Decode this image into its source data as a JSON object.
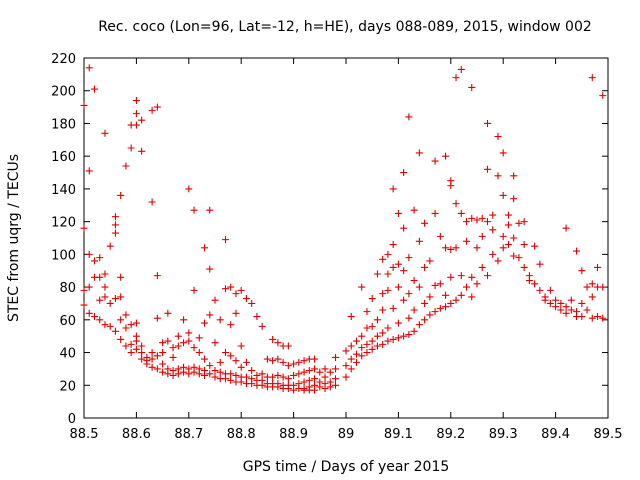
{
  "chart_data": {
    "type": "scatter",
    "title": "Rec. coco (Lon=96, Lat=-12, h=HE), days 088-089, 2015, window 002",
    "xlabel": "GPS time / Days of year 2015",
    "ylabel": "STEC from uqrg / TECUs",
    "xlim": [
      88.5,
      89.5
    ],
    "ylim": [
      0,
      220
    ],
    "xticks": [
      "88.5",
      "88.6",
      "88.7",
      "88.8",
      "88.9",
      "89",
      "89.1",
      "89.2",
      "89.3",
      "89.4",
      "89.5"
    ],
    "yticks": [
      "0",
      "20",
      "40",
      "60",
      "80",
      "100",
      "120",
      "140",
      "160",
      "180",
      "200",
      "220"
    ],
    "grid": false,
    "marker": "+",
    "color": "#e00000",
    "points": [
      [
        88.5,
        191
      ],
      [
        88.5,
        116
      ],
      [
        88.5,
        78
      ],
      [
        88.5,
        69
      ],
      [
        88.51,
        214
      ],
      [
        88.51,
        151
      ],
      [
        88.51,
        100
      ],
      [
        88.51,
        80
      ],
      [
        88.51,
        64
      ],
      [
        88.52,
        201
      ],
      [
        88.52,
        96
      ],
      [
        88.52,
        86
      ],
      [
        88.52,
        62
      ],
      [
        88.53,
        98
      ],
      [
        88.53,
        86
      ],
      [
        88.53,
        72
      ],
      [
        88.53,
        60
      ],
      [
        88.54,
        174
      ],
      [
        88.54,
        88
      ],
      [
        88.54,
        80
      ],
      [
        88.54,
        74
      ],
      [
        88.54,
        57
      ],
      [
        88.55,
        105
      ],
      [
        88.55,
        70
      ],
      [
        88.55,
        56
      ],
      [
        88.56,
        123
      ],
      [
        88.56,
        118
      ],
      [
        88.56,
        113
      ],
      [
        88.56,
        73
      ],
      [
        88.56,
        53
      ],
      [
        88.57,
        136
      ],
      [
        88.57,
        86
      ],
      [
        88.57,
        74
      ],
      [
        88.57,
        60
      ],
      [
        88.57,
        48
      ],
      [
        88.58,
        154
      ],
      [
        88.58,
        63
      ],
      [
        88.58,
        55
      ],
      [
        88.58,
        44
      ],
      [
        88.59,
        165
      ],
      [
        88.59,
        179
      ],
      [
        88.59,
        57
      ],
      [
        88.59,
        45
      ],
      [
        88.59,
        40
      ],
      [
        88.6,
        194
      ],
      [
        88.6,
        186
      ],
      [
        88.6,
        179
      ],
      [
        88.6,
        58
      ],
      [
        88.6,
        50
      ],
      [
        88.6,
        47
      ],
      [
        88.6,
        42
      ],
      [
        88.61,
        182
      ],
      [
        88.61,
        163
      ],
      [
        88.61,
        44
      ],
      [
        88.61,
        40
      ],
      [
        88.61,
        36
      ],
      [
        88.62,
        37
      ],
      [
        88.62,
        35
      ],
      [
        88.62,
        33
      ],
      [
        88.63,
        188
      ],
      [
        88.63,
        132
      ],
      [
        88.63,
        40
      ],
      [
        88.63,
        36
      ],
      [
        88.63,
        31
      ],
      [
        88.64,
        190
      ],
      [
        88.64,
        87
      ],
      [
        88.64,
        61
      ],
      [
        88.64,
        38
      ],
      [
        88.64,
        30
      ],
      [
        88.65,
        46
      ],
      [
        88.65,
        40
      ],
      [
        88.65,
        33
      ],
      [
        88.65,
        28
      ],
      [
        88.66,
        64
      ],
      [
        88.66,
        47
      ],
      [
        88.66,
        30
      ],
      [
        88.66,
        27
      ],
      [
        88.67,
        43
      ],
      [
        88.67,
        37
      ],
      [
        88.67,
        29
      ],
      [
        88.67,
        26
      ],
      [
        88.68,
        50
      ],
      [
        88.68,
        44
      ],
      [
        88.68,
        30
      ],
      [
        88.68,
        27
      ],
      [
        88.69,
        60
      ],
      [
        88.69,
        46
      ],
      [
        88.69,
        31
      ],
      [
        88.69,
        28
      ],
      [
        88.7,
        140
      ],
      [
        88.7,
        52
      ],
      [
        88.7,
        47
      ],
      [
        88.7,
        30
      ],
      [
        88.7,
        27
      ],
      [
        88.71,
        127
      ],
      [
        88.71,
        78
      ],
      [
        88.71,
        43
      ],
      [
        88.71,
        31
      ],
      [
        88.71,
        28
      ],
      [
        88.72,
        49
      ],
      [
        88.72,
        40
      ],
      [
        88.72,
        30
      ],
      [
        88.72,
        27
      ],
      [
        88.73,
        104
      ],
      [
        88.73,
        58
      ],
      [
        88.73,
        36
      ],
      [
        88.73,
        29
      ],
      [
        88.73,
        26
      ],
      [
        88.74,
        127
      ],
      [
        88.74,
        91
      ],
      [
        88.74,
        63
      ],
      [
        88.74,
        32
      ],
      [
        88.74,
        27
      ],
      [
        88.75,
        72
      ],
      [
        88.75,
        46
      ],
      [
        88.75,
        29
      ],
      [
        88.75,
        25
      ],
      [
        88.76,
        60
      ],
      [
        88.76,
        34
      ],
      [
        88.76,
        28
      ],
      [
        88.76,
        24
      ],
      [
        88.77,
        109
      ],
      [
        88.77,
        79
      ],
      [
        88.77,
        40
      ],
      [
        88.77,
        27
      ],
      [
        88.77,
        24
      ],
      [
        88.78,
        80
      ],
      [
        88.78,
        57
      ],
      [
        88.78,
        38
      ],
      [
        88.78,
        27
      ],
      [
        88.78,
        23
      ],
      [
        88.79,
        76
      ],
      [
        88.79,
        64
      ],
      [
        88.79,
        35
      ],
      [
        88.79,
        26
      ],
      [
        88.79,
        22
      ],
      [
        88.8,
        78
      ],
      [
        88.8,
        44
      ],
      [
        88.8,
        31
      ],
      [
        88.8,
        25
      ],
      [
        88.8,
        22
      ],
      [
        88.81,
        73
      ],
      [
        88.81,
        34
      ],
      [
        88.81,
        25
      ],
      [
        88.81,
        21
      ],
      [
        88.82,
        70
      ],
      [
        88.82,
        29
      ],
      [
        88.82,
        24
      ],
      [
        88.82,
        21
      ],
      [
        88.83,
        62
      ],
      [
        88.83,
        26
      ],
      [
        88.83,
        23
      ],
      [
        88.83,
        20
      ],
      [
        88.84,
        56
      ],
      [
        88.84,
        27
      ],
      [
        88.84,
        23
      ],
      [
        88.84,
        20
      ],
      [
        88.85,
        36
      ],
      [
        88.85,
        25
      ],
      [
        88.85,
        21
      ],
      [
        88.85,
        19
      ],
      [
        88.86,
        48
      ],
      [
        88.86,
        35
      ],
      [
        88.86,
        25
      ],
      [
        88.86,
        21
      ],
      [
        88.86,
        19
      ],
      [
        88.87,
        46
      ],
      [
        88.87,
        36
      ],
      [
        88.87,
        26
      ],
      [
        88.87,
        21
      ],
      [
        88.87,
        19
      ],
      [
        88.88,
        44
      ],
      [
        88.88,
        34
      ],
      [
        88.88,
        25
      ],
      [
        88.88,
        20
      ],
      [
        88.88,
        18
      ],
      [
        88.89,
        44
      ],
      [
        88.89,
        32
      ],
      [
        88.89,
        24
      ],
      [
        88.89,
        20
      ],
      [
        88.89,
        18
      ],
      [
        88.9,
        33
      ],
      [
        88.9,
        26
      ],
      [
        88.9,
        20
      ],
      [
        88.9,
        17
      ],
      [
        88.91,
        34
      ],
      [
        88.91,
        27
      ],
      [
        88.91,
        21
      ],
      [
        88.91,
        18
      ],
      [
        88.92,
        35
      ],
      [
        88.92,
        28
      ],
      [
        88.92,
        22
      ],
      [
        88.92,
        18
      ],
      [
        88.92,
        17
      ],
      [
        88.93,
        36
      ],
      [
        88.93,
        29
      ],
      [
        88.93,
        23
      ],
      [
        88.93,
        19
      ],
      [
        88.93,
        17
      ],
      [
        88.94,
        36
      ],
      [
        88.94,
        30
      ],
      [
        88.94,
        24
      ],
      [
        88.94,
        20
      ],
      [
        88.94,
        17
      ],
      [
        88.95,
        28
      ],
      [
        88.95,
        22
      ],
      [
        88.95,
        19
      ],
      [
        88.96,
        30
      ],
      [
        88.96,
        25
      ],
      [
        88.96,
        21
      ],
      [
        88.96,
        18
      ],
      [
        88.97,
        28
      ],
      [
        88.97,
        22
      ],
      [
        88.97,
        19
      ],
      [
        88.98,
        37
      ],
      [
        88.98,
        30
      ],
      [
        88.98,
        24
      ],
      [
        88.98,
        20
      ],
      [
        89,
        41
      ],
      [
        89,
        32
      ],
      [
        89,
        25
      ],
      [
        89.01,
        62
      ],
      [
        89.01,
        44
      ],
      [
        89.01,
        36
      ],
      [
        89.01,
        30
      ],
      [
        89.02,
        47
      ],
      [
        89.02,
        39
      ],
      [
        89.02,
        34
      ],
      [
        89.03,
        80
      ],
      [
        89.03,
        50
      ],
      [
        89.03,
        43
      ],
      [
        89.03,
        38
      ],
      [
        89.04,
        65
      ],
      [
        89.04,
        55
      ],
      [
        89.04,
        45
      ],
      [
        89.04,
        40
      ],
      [
        89.05,
        73
      ],
      [
        89.05,
        56
      ],
      [
        89.05,
        47
      ],
      [
        89.05,
        42
      ],
      [
        89.06,
        88
      ],
      [
        89.06,
        60
      ],
      [
        89.06,
        50
      ],
      [
        89.06,
        44
      ],
      [
        89.07,
        97
      ],
      [
        89.07,
        76
      ],
      [
        89.07,
        66
      ],
      [
        89.07,
        52
      ],
      [
        89.07,
        45
      ],
      [
        89.08,
        100
      ],
      [
        89.08,
        88
      ],
      [
        89.08,
        78
      ],
      [
        89.08,
        55
      ],
      [
        89.08,
        47
      ],
      [
        89.09,
        140
      ],
      [
        89.09,
        106
      ],
      [
        89.09,
        92
      ],
      [
        89.09,
        67
      ],
      [
        89.09,
        48
      ],
      [
        89.1,
        125
      ],
      [
        89.1,
        94
      ],
      [
        89.1,
        80
      ],
      [
        89.1,
        58
      ],
      [
        89.1,
        49
      ],
      [
        89.11,
        150
      ],
      [
        89.11,
        116
      ],
      [
        89.11,
        90
      ],
      [
        89.11,
        72
      ],
      [
        89.11,
        50
      ],
      [
        89.12,
        184
      ],
      [
        89.12,
        98
      ],
      [
        89.12,
        76
      ],
      [
        89.12,
        61
      ],
      [
        89.12,
        51
      ],
      [
        89.13,
        127
      ],
      [
        89.13,
        84
      ],
      [
        89.13,
        66
      ],
      [
        89.13,
        53
      ],
      [
        89.14,
        162
      ],
      [
        89.14,
        108
      ],
      [
        89.14,
        80
      ],
      [
        89.14,
        57
      ],
      [
        89.15,
        119
      ],
      [
        89.15,
        92
      ],
      [
        89.15,
        70
      ],
      [
        89.15,
        60
      ],
      [
        89.16,
        96
      ],
      [
        89.16,
        74
      ],
      [
        89.16,
        63
      ],
      [
        89.17,
        157
      ],
      [
        89.17,
        125
      ],
      [
        89.17,
        81
      ],
      [
        89.17,
        65
      ],
      [
        89.18,
        111
      ],
      [
        89.18,
        82
      ],
      [
        89.18,
        67
      ],
      [
        89.19,
        160
      ],
      [
        89.19,
        104
      ],
      [
        89.19,
        75
      ],
      [
        89.19,
        68
      ],
      [
        89.2,
        145
      ],
      [
        89.2,
        142
      ],
      [
        89.2,
        103
      ],
      [
        89.2,
        86
      ],
      [
        89.2,
        70
      ],
      [
        89.21,
        208
      ],
      [
        89.21,
        131
      ],
      [
        89.21,
        104
      ],
      [
        89.21,
        72
      ],
      [
        89.22,
        213
      ],
      [
        89.22,
        125
      ],
      [
        89.22,
        87
      ],
      [
        89.22,
        75
      ],
      [
        89.23,
        120
      ],
      [
        89.23,
        108
      ],
      [
        89.23,
        80
      ],
      [
        89.24,
        202
      ],
      [
        89.24,
        122
      ],
      [
        89.24,
        86
      ],
      [
        89.24,
        74
      ],
      [
        89.25,
        121
      ],
      [
        89.25,
        104
      ],
      [
        89.25,
        82
      ],
      [
        89.26,
        122
      ],
      [
        89.26,
        111
      ],
      [
        89.26,
        92
      ],
      [
        89.27,
        180
      ],
      [
        89.27,
        152
      ],
      [
        89.27,
        120
      ],
      [
        89.27,
        87
      ],
      [
        89.28,
        124
      ],
      [
        89.28,
        115
      ],
      [
        89.28,
        100
      ],
      [
        89.29,
        172
      ],
      [
        89.29,
        148
      ],
      [
        89.29,
        96
      ],
      [
        89.3,
        162
      ],
      [
        89.3,
        136
      ],
      [
        89.3,
        111
      ],
      [
        89.3,
        104
      ],
      [
        89.31,
        124
      ],
      [
        89.31,
        118
      ],
      [
        89.31,
        106
      ],
      [
        89.32,
        148
      ],
      [
        89.32,
        134
      ],
      [
        89.32,
        110
      ],
      [
        89.32,
        99
      ],
      [
        89.33,
        119
      ],
      [
        89.33,
        98
      ],
      [
        89.34,
        120
      ],
      [
        89.34,
        106
      ],
      [
        89.34,
        92
      ],
      [
        89.35,
        87
      ],
      [
        89.35,
        84
      ],
      [
        89.36,
        105
      ],
      [
        89.36,
        82
      ],
      [
        89.37,
        94
      ],
      [
        89.37,
        78
      ],
      [
        89.38,
        74
      ],
      [
        89.38,
        72
      ],
      [
        89.39,
        78
      ],
      [
        89.39,
        70
      ],
      [
        89.4,
        72
      ],
      [
        89.4,
        68
      ],
      [
        89.41,
        70
      ],
      [
        89.41,
        66
      ],
      [
        89.42,
        116
      ],
      [
        89.42,
        68
      ],
      [
        89.42,
        64
      ],
      [
        89.43,
        72
      ],
      [
        89.43,
        66
      ],
      [
        89.44,
        102
      ],
      [
        89.44,
        65
      ],
      [
        89.44,
        62
      ],
      [
        89.45,
        90
      ],
      [
        89.45,
        70
      ],
      [
        89.45,
        62
      ],
      [
        89.46,
        80
      ],
      [
        89.46,
        66
      ],
      [
        89.47,
        208
      ],
      [
        89.47,
        82
      ],
      [
        89.47,
        74
      ],
      [
        89.47,
        61
      ],
      [
        89.48,
        92
      ],
      [
        89.48,
        80
      ],
      [
        89.48,
        62
      ],
      [
        89.49,
        197
      ],
      [
        89.49,
        80
      ],
      [
        89.49,
        61
      ]
    ]
  }
}
